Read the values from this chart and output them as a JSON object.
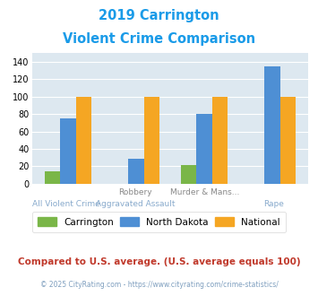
{
  "title_line1": "2019 Carrington",
  "title_line2": "Violent Crime Comparison",
  "title_color": "#1a9be8",
  "carrington": [
    14,
    0,
    21,
    0
  ],
  "north_dakota": [
    75,
    29,
    80,
    135
  ],
  "national": [
    100,
    100,
    100,
    100
  ],
  "carrington_color": "#7ab648",
  "north_dakota_color": "#4e8fd4",
  "national_color": "#f5a623",
  "ylim": [
    0,
    150
  ],
  "yticks": [
    0,
    20,
    40,
    60,
    80,
    100,
    120,
    140
  ],
  "bg_color": "#dde8f0",
  "fig_bg": "#ffffff",
  "legend_labels": [
    "Carrington",
    "North Dakota",
    "National"
  ],
  "top_labels": [
    "",
    "Robbery",
    "Murder & Mans...",
    ""
  ],
  "bottom_labels": [
    "All Violent Crime",
    "Aggravated Assault",
    "",
    "Rape"
  ],
  "footnote1": "Compared to U.S. average. (U.S. average equals 100)",
  "footnote1_color": "#c0392b",
  "footnote2": "© 2025 CityRating.com - https://www.cityrating.com/crime-statistics/",
  "footnote2_color": "#7f9fbf"
}
